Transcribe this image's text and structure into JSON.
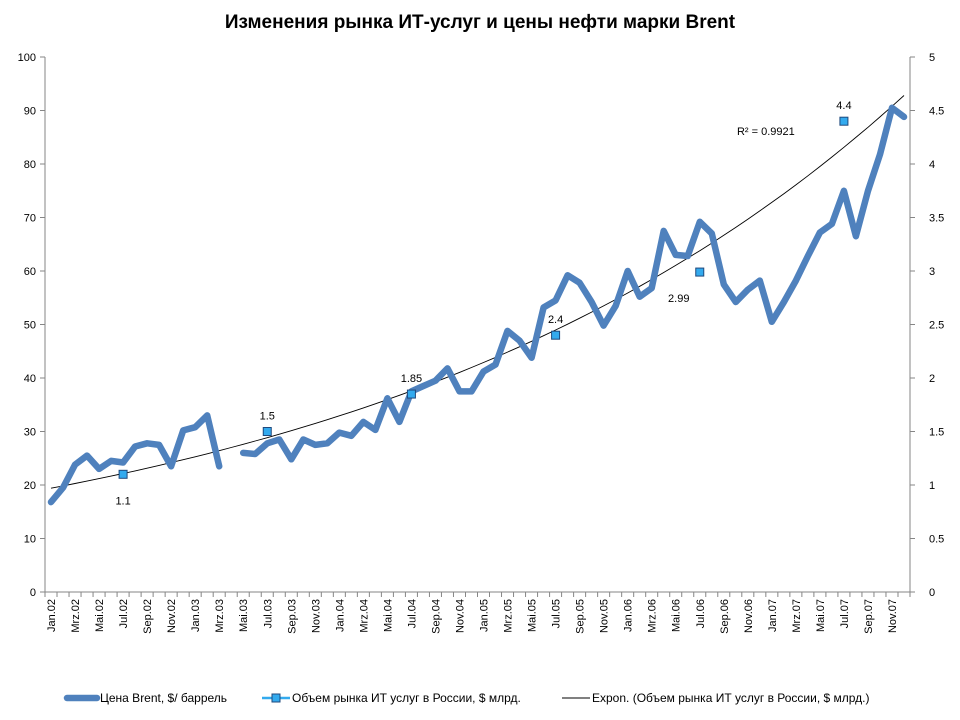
{
  "chart_data": {
    "type": "line",
    "title": "Изменения рынка ИТ-услуг и цены нефти марки Brent",
    "xlabel": "",
    "ylabel": "",
    "y_left_range": [
      0,
      100
    ],
    "y_right_range": [
      0,
      5
    ],
    "y_left_ticks": [
      "0",
      "10",
      "20",
      "30",
      "40",
      "50",
      "60",
      "70",
      "80",
      "90",
      "100"
    ],
    "y_right_ticks": [
      "0",
      "0.5",
      "1",
      "1.5",
      "2",
      "2.5",
      "3",
      "3.5",
      "4",
      "4.5",
      "5"
    ],
    "grid": false,
    "legend_position": "bottom",
    "x_labels": [
      "Jan.02",
      "Mrz.02",
      "Mai.02",
      "Jul.02",
      "Sep.02",
      "Nov.02",
      "Jan.03",
      "Mrz.03",
      "Mai.03",
      "Jul.03",
      "Sep.03",
      "Nov.03",
      "Jan.04",
      "Mrz.04",
      "Mai.04",
      "Jul.04",
      "Sep.04",
      "Nov.04",
      "Jan.05",
      "Mrz.05",
      "Mai.05",
      "Jul.05",
      "Sep.05",
      "Nov.05",
      "Jan.06",
      "Mrz.06",
      "Mai.06",
      "Jul.06",
      "Sep.06",
      "Nov.06",
      "Jan.07",
      "Mrz.07",
      "Mai.07",
      "Jul.07",
      "Sep.07",
      "Nov.07"
    ],
    "series": [
      {
        "name": "Цена Brent, $/ баррель",
        "axis": "left",
        "color": "#4f81bd",
        "values": [
          16.8,
          19.5,
          23.8,
          25.5,
          23,
          24.5,
          24.2,
          27.2,
          27.8,
          27.5,
          23.5,
          30.2,
          30.8,
          33,
          23.5,
          null,
          26,
          25.8,
          27.8,
          28.5,
          24.8,
          28.5,
          27.5,
          27.8,
          29.8,
          29.2,
          31.8,
          30.3,
          36.2,
          31.8,
          37.5,
          38.5,
          39.5,
          41.8,
          37.5,
          37.5,
          41.2,
          42.5,
          48.8,
          47,
          43.8,
          53.2,
          54.5,
          59.2,
          57.8,
          54.2,
          49.8,
          53.5,
          60,
          55.2,
          56.8,
          67.5,
          63,
          62.8,
          69.2,
          67,
          57.5,
          54.2,
          56.5,
          58.2,
          50.5,
          54.2,
          58.2,
          62.8,
          67.2,
          68.8,
          75,
          66.5,
          75,
          81.8,
          90.5,
          88.8
        ]
      },
      {
        "name": "Объем рынка ИТ услуг в России, $ млрд.",
        "axis": "right",
        "color": "#33aaee",
        "points": [
          {
            "x": 6,
            "y": 1.1,
            "label": "1.1"
          },
          {
            "x": 18,
            "y": 1.5,
            "label": "1.5"
          },
          {
            "x": 30,
            "y": 1.85,
            "label": "1.85"
          },
          {
            "x": 42,
            "y": 2.4,
            "label": "2.4"
          },
          {
            "x": 54,
            "y": 2.99,
            "label": "2.99"
          },
          {
            "x": 66,
            "y": 4.4,
            "label": "4.4"
          }
        ]
      },
      {
        "name": "Expon. (Объем рынка ИТ услуг в России, $ млрд.)",
        "axis": "right",
        "color": "#000000",
        "trend": "exponential",
        "y_start": 0.97,
        "y_end": 4.64,
        "r2_label": "R² = 0.9921"
      }
    ]
  }
}
